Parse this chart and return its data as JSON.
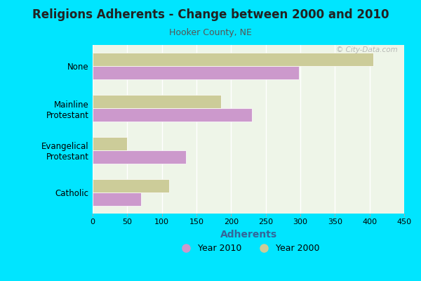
{
  "title": "Religions Adherents - Change between 2000 and 2010",
  "subtitle": "Hooker County, NE",
  "xlabel": "Adherents",
  "categories": [
    "Catholic",
    "Evangelical\nProtestant",
    "Mainline\nProtestant",
    "None"
  ],
  "year2010": [
    70,
    135,
    230,
    298
  ],
  "year2000": [
    110,
    50,
    185,
    405
  ],
  "color_2010": "#cc99cc",
  "color_2000": "#cccc99",
  "xlim": [
    0,
    450
  ],
  "xticks": [
    0,
    50,
    100,
    150,
    200,
    250,
    300,
    350,
    400,
    450
  ],
  "background_outer": "#00e5ff",
  "background_inner": "#eef5e8",
  "legend_label_2010": "Year 2010",
  "legend_label_2000": "Year 2000",
  "title_fontsize": 12,
  "subtitle_fontsize": 9,
  "xlabel_fontsize": 10,
  "bar_height": 0.32,
  "xlabel_color": "#336699",
  "title_color": "#222222",
  "subtitle_color": "#555555"
}
